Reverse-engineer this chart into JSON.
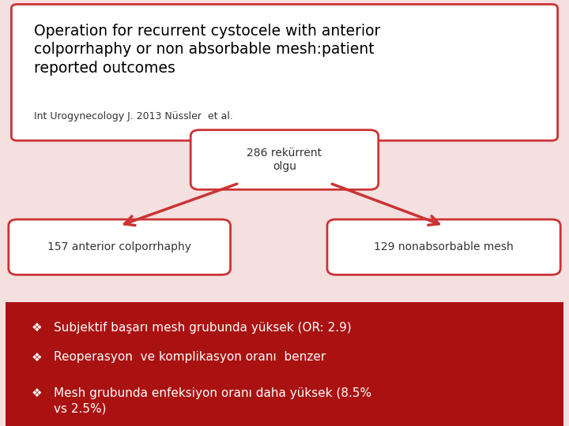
{
  "title": "Operation for recurrent cystocele with anterior\ncolporrhaphy or non absorbable mesh:patient\nreported outcomes",
  "subtitle": "Int Urogynecology J. 2013 Nüssler  et al.",
  "top_box_text": "286 rekürrent\nolgu",
  "left_box_text": "157 anterior colporrhaphy",
  "right_box_text": "129 nonabsorbable mesh",
  "bullet_points": [
    "Subjektif başarı mesh grubunda yüksek (OR: 2.9)",
    "Reoperasyon  ve komplikasyon oranı  benzer",
    "Mesh grubunda enfeksiyon oranı daha yüksek (8.5%\nvs 2.5%)"
  ],
  "bg_color": "#f5e0e0",
  "header_bg": "#ffffff",
  "header_border": "#cc3333",
  "box_bg": "#ffffff",
  "box_border": "#cc3333",
  "arrow_color": "#cc3333",
  "bullet_bg": "#aa1111",
  "bullet_text_color": "#ffffff",
  "title_color": "#000000",
  "subtitle_color": "#333333",
  "box_text_color": "#333333"
}
